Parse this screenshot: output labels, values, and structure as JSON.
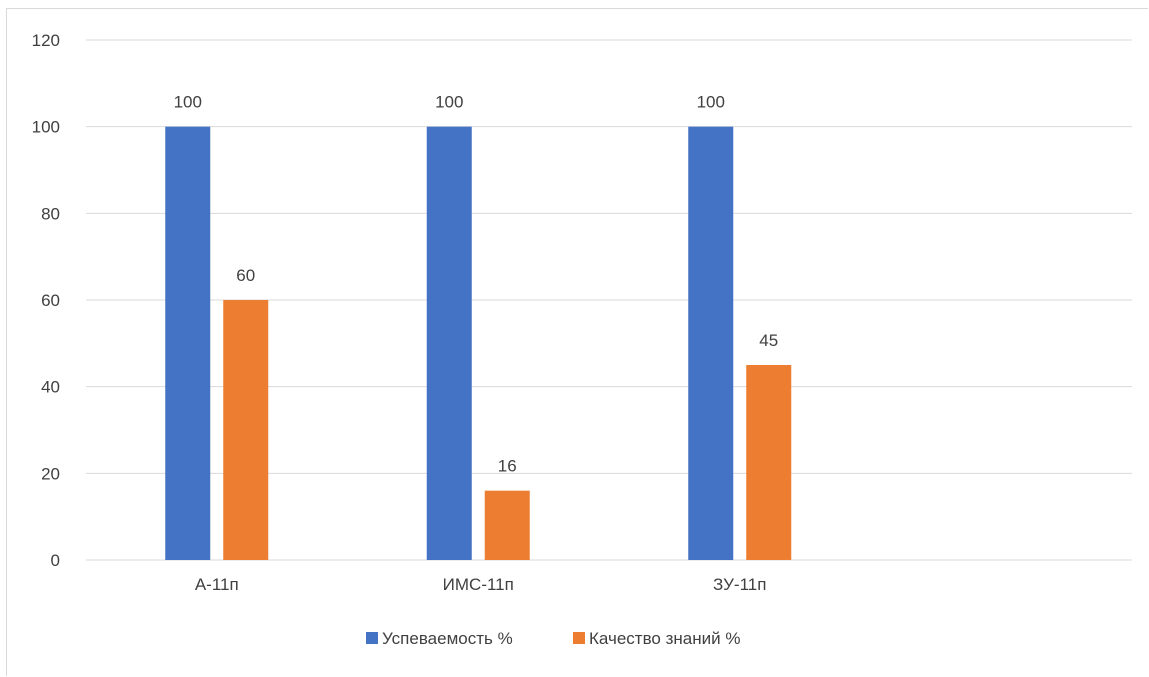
{
  "chart_data": {
    "type": "bar",
    "title": "",
    "xlabel": "",
    "ylabel": "",
    "categories": [
      "А-11п",
      "ИМС-11п",
      "ЗУ-11п",
      ""
    ],
    "series": [
      {
        "name": "Успеваемость %",
        "color": "#4472C4",
        "values": [
          100,
          100,
          100,
          null
        ]
      },
      {
        "name": "Качество знаний %",
        "color": "#ED7D31",
        "values": [
          60,
          16,
          45,
          null
        ]
      }
    ],
    "ylim": [
      0,
      120
    ],
    "yticks": [
      0,
      20,
      40,
      60,
      80,
      100,
      120
    ],
    "grid": true,
    "legend_position": "bottom"
  }
}
